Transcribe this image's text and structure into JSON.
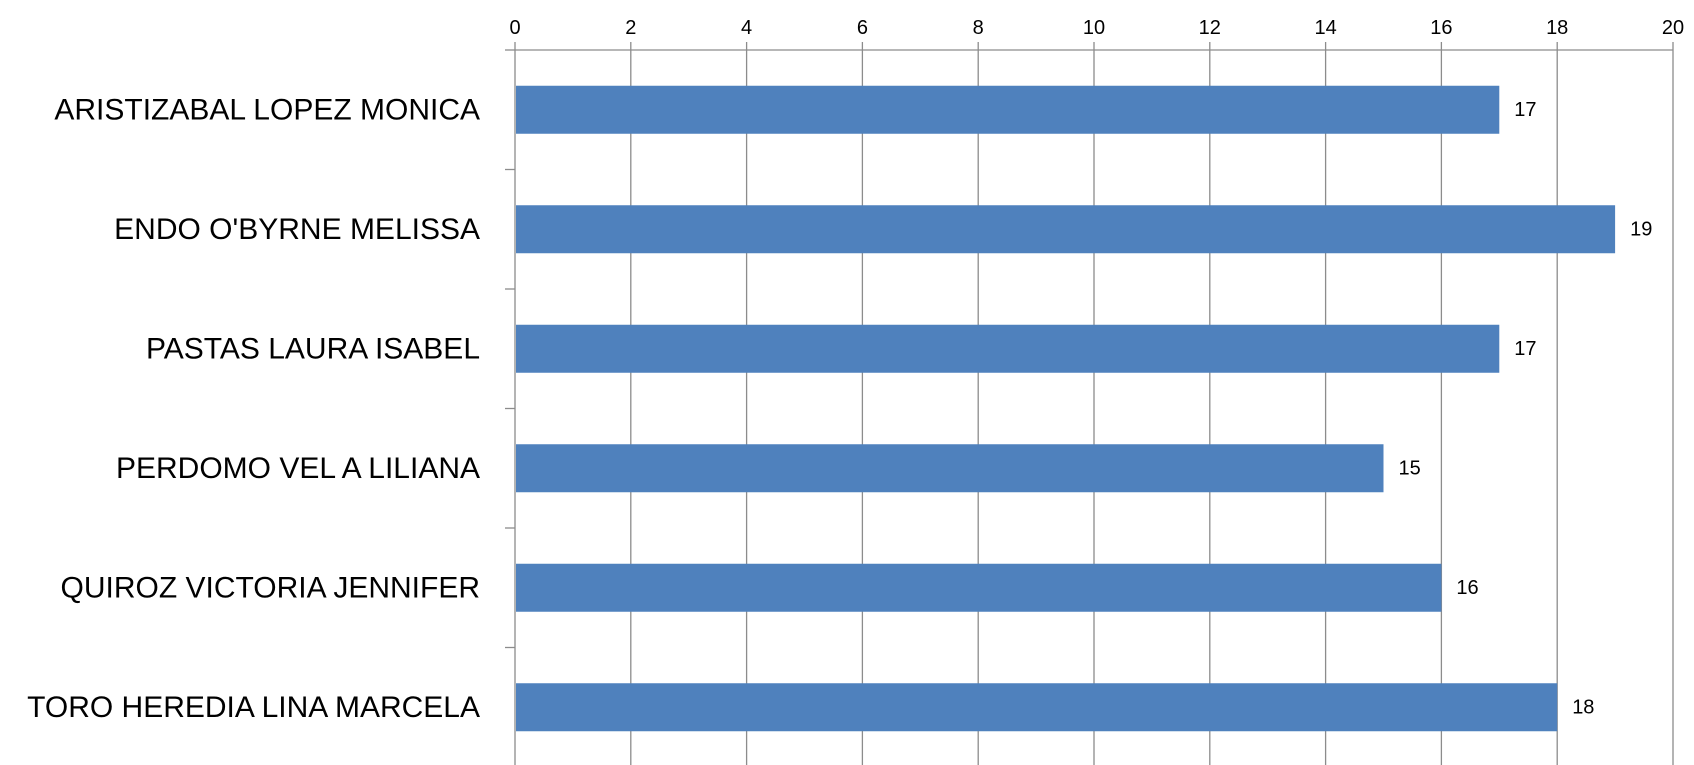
{
  "chart_data": {
    "type": "bar",
    "orientation": "horizontal",
    "categories": [
      "ARISTIZABAL LOPEZ MONICA",
      "ENDO O'BYRNE MELISSA",
      "PASTAS LAURA ISABEL",
      "PERDOMO VEL A LILIANA",
      "QUIROZ VICTORIA JENNIFER",
      "TORO HEREDIA LINA MARCELA"
    ],
    "values": [
      17,
      19,
      17,
      15,
      16,
      18
    ],
    "title": "",
    "xlabel": "",
    "ylabel": "",
    "xlim": [
      0,
      20
    ],
    "ticks": [
      0,
      2,
      4,
      6,
      8,
      10,
      12,
      14,
      16,
      18,
      20
    ],
    "tick_position": "top",
    "grid": true,
    "legend": "none",
    "data_labels": true,
    "colors": {
      "bar": "#4f81bd",
      "grid": "#8c8c8c",
      "axis": "#8c8c8c",
      "text": "#000000"
    }
  }
}
